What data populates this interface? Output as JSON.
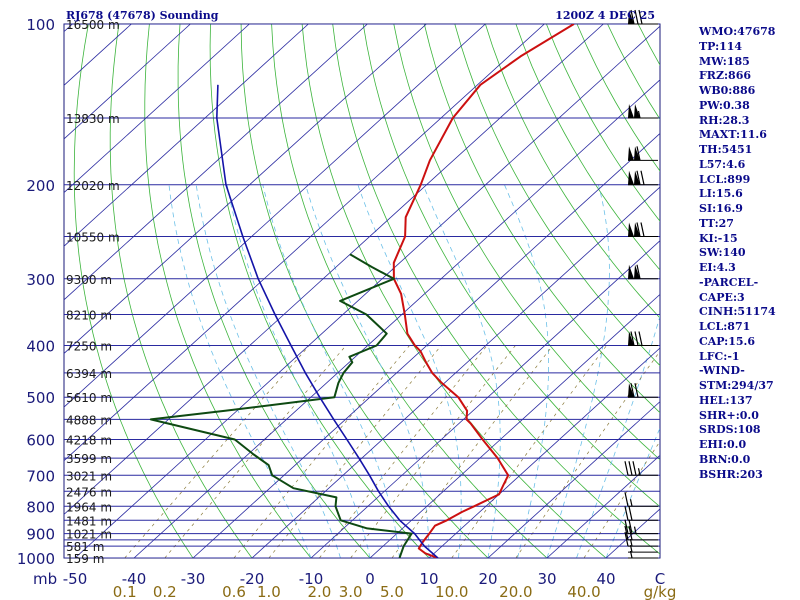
{
  "header": {
    "station": "RJ678 (47678) Sounding",
    "time": "1200Z  4 DEC 25"
  },
  "colors": {
    "isobar": "#2a2aa0",
    "isotherm": "#2a2aa0",
    "dry_adiabat": "#3cb43c",
    "moist_adiabat": "#6cc0e8",
    "mixing_ratio": "#8a7a3a",
    "temperature": "#cc1010",
    "dewpoint": "#0e4a12",
    "parcel": "#1414a8",
    "wind_barb": "#000000"
  },
  "indices": [
    "WMO:47678",
    "TP:114",
    "MW:185",
    "FRZ:866",
    "WB0:886",
    "PW:0.38",
    "RH:28.3",
    "MAXT:11.6",
    "TH:5451",
    "L57:4.6",
    "LCL:899",
    "LI:15.6",
    "SI:16.9",
    "TT:27",
    "KI:-15",
    "SW:140",
    "EI:4.3",
    "-PARCEL-",
    "CAPE:3",
    "CINH:51174",
    "LCL:871",
    "CAP:15.6",
    "LFC:-1",
    "-WIND-",
    "STM:294/37",
    "HEL:137",
    "SHR+:0.0",
    "SRDS:108",
    "EHI:0.0",
    "BRN:0.0",
    "BSHR:203"
  ],
  "chart_data": {
    "type": "line",
    "chart_kind": "skew-T log-P sounding",
    "title": "RJ678 (47678) Sounding",
    "pressure_axis_unit": "mb",
    "pressure_ticks": [
      100,
      200,
      300,
      400,
      500,
      600,
      700,
      800,
      900,
      1000
    ],
    "pressure_range": [
      1000,
      100
    ],
    "isobars": [
      100,
      150,
      200,
      250,
      300,
      350,
      400,
      450,
      500,
      550,
      600,
      650,
      700,
      750,
      800,
      850,
      900,
      925,
      950,
      1000
    ],
    "height_labels": [
      {
        "p": 100,
        "label": "16500 m"
      },
      {
        "p": 150,
        "label": "13830 m"
      },
      {
        "p": 200,
        "label": "12020 m"
      },
      {
        "p": 250,
        "label": "10550 m"
      },
      {
        "p": 300,
        "label": "9300 m"
      },
      {
        "p": 350,
        "label": "8210 m"
      },
      {
        "p": 400,
        "label": "7250 m"
      },
      {
        "p": 450,
        "label": "6394 m"
      },
      {
        "p": 500,
        "label": "5610 m"
      },
      {
        "p": 550,
        "label": "4888 m"
      },
      {
        "p": 600,
        "label": "4218 m"
      },
      {
        "p": 650,
        "label": "3599 m"
      },
      {
        "p": 700,
        "label": "3021 m"
      },
      {
        "p": 750,
        "label": "2476 m"
      },
      {
        "p": 800,
        "label": "1964 m"
      },
      {
        "p": 850,
        "label": "1481 m"
      },
      {
        "p": 900,
        "label": "1021 m"
      },
      {
        "p": 950,
        "label": "581 m"
      },
      {
        "p": 1000,
        "label": "159 m"
      }
    ],
    "temperature_unit": "C",
    "temperature_ticks": [
      -50,
      -40,
      -30,
      -20,
      -10,
      0,
      10,
      20,
      30,
      40
    ],
    "mixing_ratio_unit": "g/kg",
    "mixing_ratio_labels": [
      "0.1",
      "0.2",
      "0.6",
      "1.0",
      "2.0",
      "3.0",
      "5.0",
      "10.0",
      "20.0",
      "40.0"
    ],
    "series": [
      {
        "key": "temperature",
        "points": [
          [
            1000,
            11.5
          ],
          [
            980,
            8.5
          ],
          [
            960,
            6.5
          ],
          [
            935,
            6.0
          ],
          [
            900,
            5.5
          ],
          [
            870,
            5.0
          ],
          [
            850,
            6.0
          ],
          [
            820,
            7.0
          ],
          [
            800,
            8.0
          ],
          [
            760,
            10.0
          ],
          [
            730,
            9.0
          ],
          [
            700,
            8.0
          ],
          [
            650,
            3.0
          ],
          [
            600,
            -3.0
          ],
          [
            560,
            -8.0
          ],
          [
            550,
            -9.5
          ],
          [
            530,
            -11.0
          ],
          [
            500,
            -15.0
          ],
          [
            470,
            -20.5
          ],
          [
            450,
            -24.0
          ],
          [
            430,
            -27.0
          ],
          [
            410,
            -30.0
          ],
          [
            400,
            -32.0
          ],
          [
            380,
            -35.5
          ],
          [
            350,
            -39.5
          ],
          [
            320,
            -44.0
          ],
          [
            300,
            -48.0
          ],
          [
            280,
            -51.0
          ],
          [
            250,
            -54.0
          ],
          [
            230,
            -57.5
          ],
          [
            200,
            -61.0
          ],
          [
            180,
            -64.0
          ],
          [
            150,
            -68.0
          ],
          [
            130,
            -69.5
          ],
          [
            115,
            -68.0
          ],
          [
            100,
            -65.0
          ]
        ]
      },
      {
        "key": "dewpoint",
        "points": [
          [
            1000,
            5.0
          ],
          [
            950,
            3.5
          ],
          [
            900,
            2.5
          ],
          [
            880,
            -6.0
          ],
          [
            850,
            -12.0
          ],
          [
            800,
            -15.5
          ],
          [
            770,
            -17.0
          ],
          [
            740,
            -26.0
          ],
          [
            700,
            -32.0
          ],
          [
            670,
            -34.5
          ],
          [
            640,
            -39.0
          ],
          [
            600,
            -45.0
          ],
          [
            550,
            -63.0
          ],
          [
            530,
            -52.0
          ],
          [
            500,
            -36.0
          ],
          [
            470,
            -38.0
          ],
          [
            450,
            -39.0
          ],
          [
            430,
            -39.5
          ],
          [
            420,
            -41.0
          ],
          [
            400,
            -38.5
          ],
          [
            380,
            -39.0
          ],
          [
            350,
            -46.0
          ],
          [
            330,
            -53.0
          ],
          [
            300,
            -48.0
          ],
          [
            285,
            -54.0
          ],
          [
            270,
            -60.0
          ]
        ]
      },
      {
        "key": "parcel",
        "points": [
          [
            1000,
            11.5
          ],
          [
            950,
            7.0
          ],
          [
            900,
            3.0
          ],
          [
            850,
            -2.0
          ],
          [
            800,
            -6.5
          ],
          [
            750,
            -11.0
          ],
          [
            700,
            -15.5
          ],
          [
            650,
            -20.5
          ],
          [
            600,
            -26.0
          ],
          [
            550,
            -32.0
          ],
          [
            500,
            -38.5
          ],
          [
            450,
            -45.5
          ],
          [
            400,
            -53.0
          ],
          [
            350,
            -61.5
          ],
          [
            300,
            -71.0
          ],
          [
            250,
            -81.5
          ],
          [
            200,
            -94.0
          ],
          [
            150,
            -108.0
          ],
          [
            130,
            -114.0
          ]
        ]
      }
    ],
    "winds": [
      {
        "p": 1000,
        "dir": 300,
        "kt": 5
      },
      {
        "p": 975,
        "dir": 290,
        "kt": 5
      },
      {
        "p": 950,
        "dir": 290,
        "kt": 15
      },
      {
        "p": 925,
        "dir": 290,
        "kt": 20
      },
      {
        "p": 900,
        "dir": 285,
        "kt": 25
      },
      {
        "p": 850,
        "dir": 280,
        "kt": 20
      },
      {
        "p": 800,
        "dir": 280,
        "kt": 15
      },
      {
        "p": 700,
        "dir": 280,
        "kt": 35
      },
      {
        "p": 500,
        "dir": 290,
        "kt": 70
      },
      {
        "p": 400,
        "dir": 290,
        "kt": 80
      },
      {
        "p": 300,
        "dir": 285,
        "kt": 110
      },
      {
        "p": 250,
        "dir": 285,
        "kt": 120
      },
      {
        "p": 200,
        "dir": 280,
        "kt": 120
      },
      {
        "p": 180,
        "dir": 280,
        "kt": 110
      },
      {
        "p": 150,
        "dir": 280,
        "kt": 105
      },
      {
        "p": 100,
        "dir": 280,
        "kt": 80
      }
    ]
  }
}
